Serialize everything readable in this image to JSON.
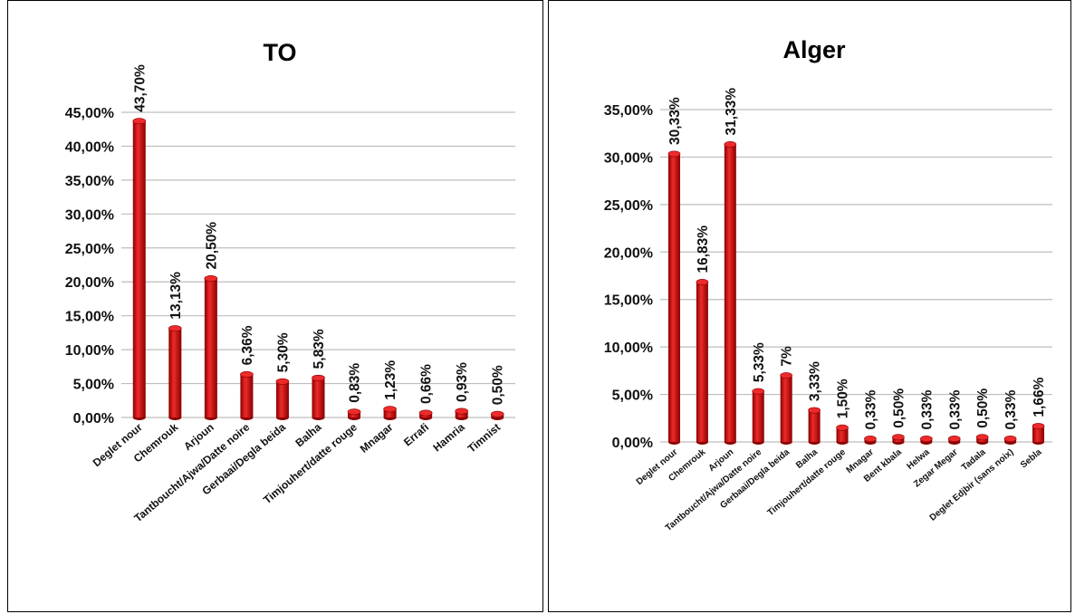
{
  "bar_color": "#c00000",
  "bar_highlight": "#ee2a2a",
  "bar_shadow": "#8a0000",
  "chart_data": [
    {
      "type": "bar",
      "title": "TO",
      "categories": [
        "Deglet nour",
        "Chemrouk",
        "Arjoun",
        "Tantboucht/Ajwa/Datte noire",
        "Gerbaai/Degla beida",
        "Balha",
        "Timjouhert/datte rouge",
        "Mnagar",
        "Errafi",
        "Hamria",
        "Timnist"
      ],
      "values": [
        43.7,
        13.13,
        20.5,
        6.36,
        5.3,
        5.83,
        0.83,
        1.23,
        0.66,
        0.93,
        0.5
      ],
      "data_labels": [
        "43,70%",
        "13,13%",
        "20,50%",
        "6,36%",
        "5,30%",
        "5,83%",
        "0,83%",
        "1,23%",
        "0,66%",
        "0,93%",
        "0,50%"
      ],
      "ylim": [
        0,
        45
      ],
      "yticks": [
        0,
        5,
        10,
        15,
        20,
        25,
        30,
        35,
        40,
        45
      ],
      "ytick_labels": [
        "0,00%",
        "5,00%",
        "10,00%",
        "15,00%",
        "20,00%",
        "25,00%",
        "30,00%",
        "35,00%",
        "40,00%",
        "45,00%"
      ],
      "xlabel": "",
      "ylabel": "",
      "grid": true,
      "legend": "none"
    },
    {
      "type": "bar",
      "title": "Alger",
      "categories": [
        "Deglet nour",
        "Chemrouk",
        "Arjoun",
        "Tantboucht/Ajwa/Datte noire",
        "Gerbaai/Degla beida",
        "Balha",
        "Timjouhert/datte rouge",
        "Mnagar",
        "Bent kbala",
        "Helwa",
        "Zegar Megar",
        "Tadala",
        "Deglet Edjbir (sans noix)",
        "Sebla"
      ],
      "values": [
        30.33,
        16.83,
        31.33,
        5.33,
        7,
        3.33,
        1.5,
        0.33,
        0.5,
        0.33,
        0.33,
        0.5,
        0.33,
        1.66
      ],
      "data_labels": [
        "30,33%",
        "16,83%",
        "31,33%",
        "5,33%",
        "7%",
        "3,33%",
        "1,50%",
        "0,33%",
        "0,50%",
        "0,33%",
        "0,33%",
        "0,50%",
        "0,33%",
        "1,66%"
      ],
      "ylim": [
        0,
        35
      ],
      "yticks": [
        0,
        5,
        10,
        15,
        20,
        25,
        30,
        35
      ],
      "ytick_labels": [
        "0,00%",
        "5,00%",
        "10,00%",
        "15,00%",
        "20,00%",
        "25,00%",
        "30,00%",
        "35,00%"
      ],
      "xlabel": "",
      "ylabel": "",
      "grid": true,
      "legend": "none"
    }
  ]
}
